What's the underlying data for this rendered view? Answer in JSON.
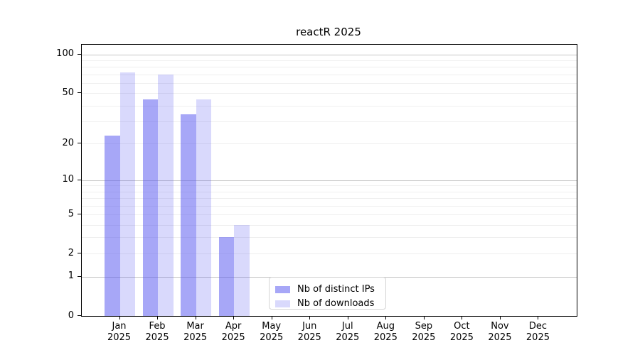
{
  "title": "reactR 2025",
  "chart_data": {
    "type": "bar",
    "title": "reactR 2025",
    "xlabel": "",
    "ylabel": "",
    "categories": [
      "Jan",
      "Feb",
      "Mar",
      "Apr",
      "May",
      "Jun",
      "Jul",
      "Aug",
      "Sep",
      "Oct",
      "Nov",
      "Dec"
    ],
    "category_year": "2025",
    "series": [
      {
        "name": "Nb of distinct IPs",
        "color": "#a7a7f7",
        "fill_rgba": "rgba(80,80,240,0.5)",
        "values": [
          23,
          45,
          34,
          3,
          0,
          0,
          0,
          0,
          0,
          0,
          0,
          0
        ]
      },
      {
        "name": "Nb of downloads",
        "color": "#d8d8f8",
        "fill_rgba": "rgba(80,80,240,0.22)",
        "values": [
          73,
          70,
          45,
          4,
          0,
          0,
          0,
          0,
          0,
          0,
          0,
          0
        ]
      }
    ],
    "y_scale": "log1p",
    "ylim": [
      0,
      119
    ],
    "y_ticks": [
      0,
      1,
      2,
      5,
      10,
      20,
      50,
      100
    ],
    "grid": true,
    "grid_major": [
      1,
      10,
      100
    ],
    "grid_minor": [
      2,
      3,
      4,
      5,
      6,
      7,
      8,
      9,
      20,
      30,
      40,
      50,
      60,
      70,
      80,
      90
    ],
    "legend_position": "lower center"
  }
}
